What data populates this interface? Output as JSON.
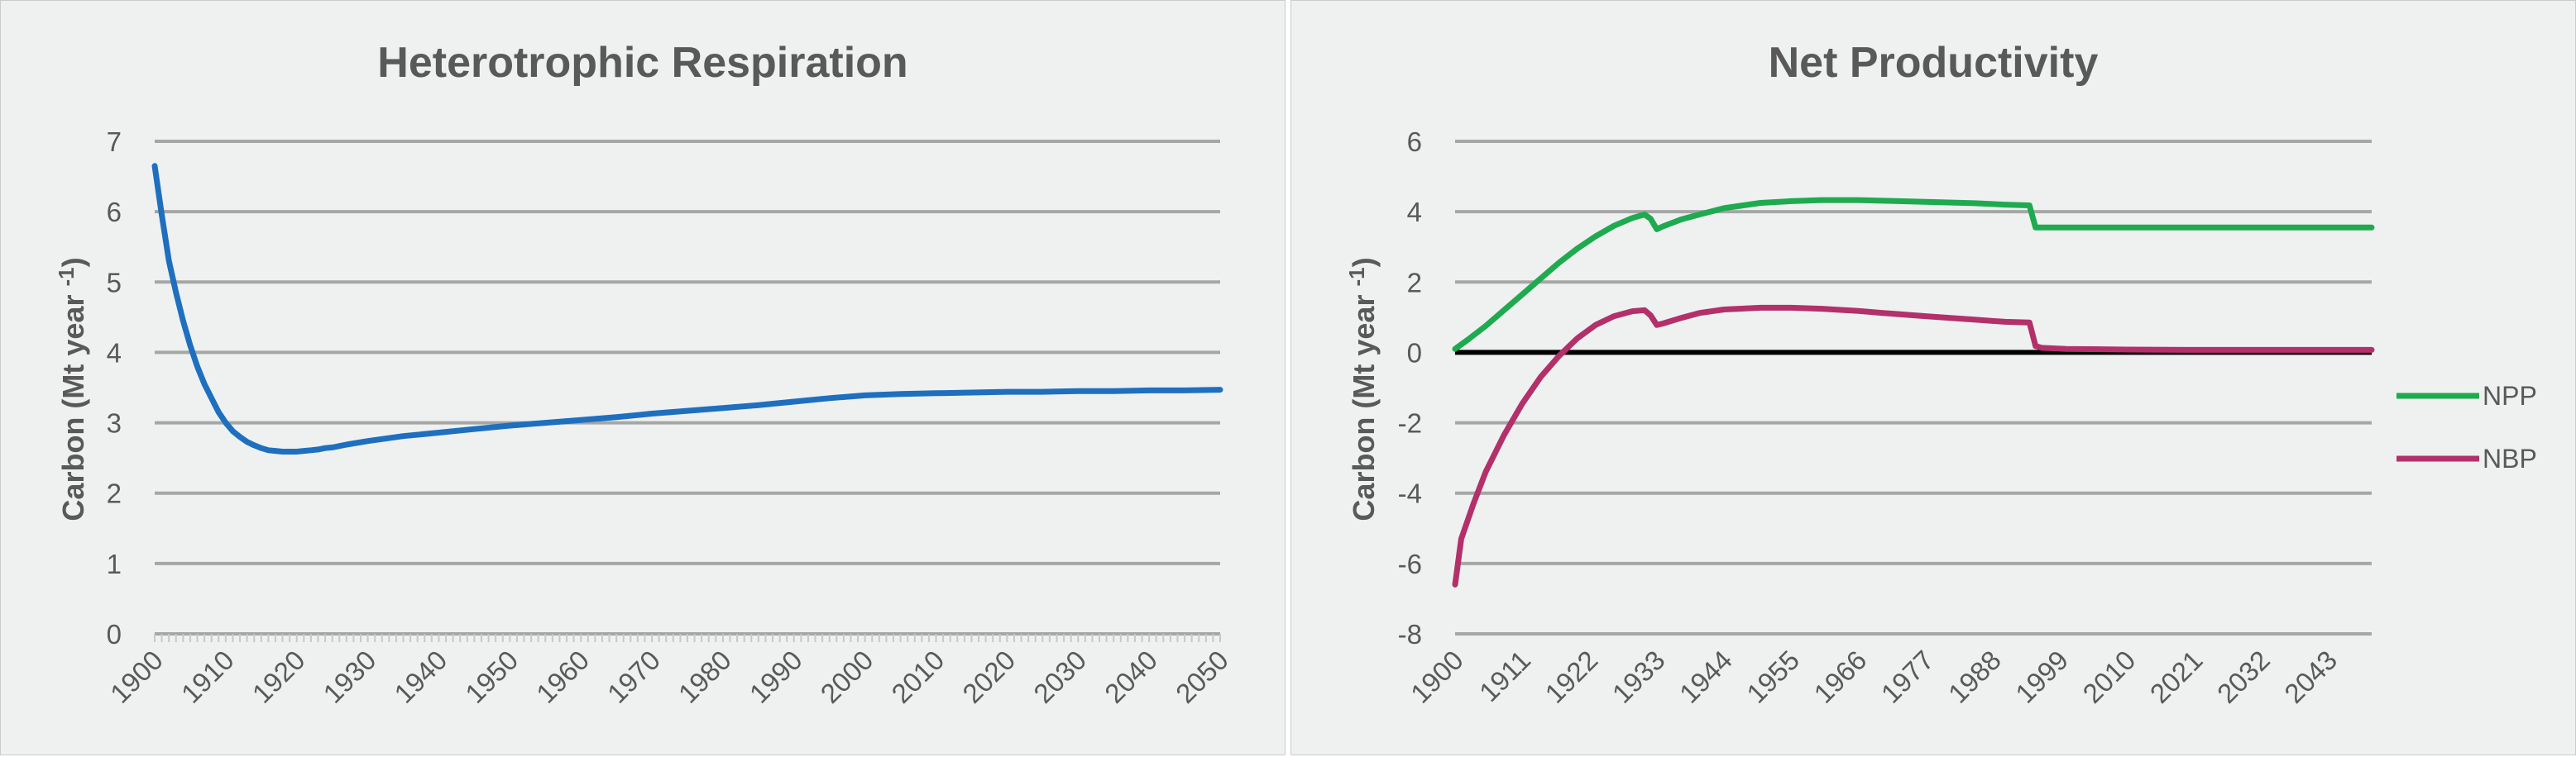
{
  "chart_data": [
    {
      "type": "line",
      "title": "Heterotrophic Respiration",
      "ylabel_main": "Carbon (Mt year ",
      "ylabel_sup": "-1",
      "ylabel_close": ")",
      "xlabel": "",
      "ylim": [
        0,
        7
      ],
      "xlim": [
        1900,
        2050
      ],
      "yticks": [
        "0",
        "1",
        "2",
        "3",
        "4",
        "5",
        "6",
        "7"
      ],
      "xticks": [
        "1900",
        "1910",
        "1920",
        "1930",
        "1940",
        "1950",
        "1960",
        "1970",
        "1980",
        "1990",
        "2000",
        "2010",
        "2020",
        "2030",
        "2040",
        "2050"
      ],
      "grid": true,
      "series": [
        {
          "color": "#1f6fbf",
          "x": [
            1900,
            1901,
            1902,
            1903,
            1904,
            1905,
            1906,
            1907,
            1908,
            1909,
            1910,
            1911,
            1912,
            1913,
            1914,
            1915,
            1916,
            1917,
            1918,
            1919,
            1920,
            1921,
            1922,
            1923,
            1924,
            1925,
            1927,
            1930,
            1935,
            1940,
            1945,
            1950,
            1955,
            1960,
            1965,
            1970,
            1975,
            1980,
            1985,
            1990,
            1995,
            2000,
            2005,
            2010,
            2015,
            2020,
            2025,
            2030,
            2035,
            2040,
            2045,
            2050
          ],
          "values": [
            6.65,
            5.95,
            5.3,
            4.85,
            4.45,
            4.1,
            3.8,
            3.55,
            3.35,
            3.15,
            3.0,
            2.88,
            2.8,
            2.73,
            2.68,
            2.64,
            2.61,
            2.6,
            2.59,
            2.59,
            2.59,
            2.6,
            2.61,
            2.62,
            2.64,
            2.65,
            2.69,
            2.74,
            2.81,
            2.86,
            2.91,
            2.96,
            3.0,
            3.04,
            3.08,
            3.13,
            3.17,
            3.21,
            3.25,
            3.3,
            3.35,
            3.39,
            3.41,
            3.42,
            3.43,
            3.44,
            3.44,
            3.45,
            3.45,
            3.46,
            3.46,
            3.47
          ]
        }
      ]
    },
    {
      "type": "line",
      "title": "Net Productivity",
      "ylabel_main": "Carbon (Mt year ",
      "ylabel_sup": "-1",
      "ylabel_close": ")",
      "xlabel": "",
      "ylim": [
        -8,
        6
      ],
      "xlim": [
        1900,
        2050
      ],
      "yticks": [
        "-8",
        "-6",
        "-4",
        "-2",
        "0",
        "2",
        "4",
        "6"
      ],
      "xticks": [
        "1900",
        "1911",
        "1922",
        "1933",
        "1944",
        "1955",
        "1966",
        "1977",
        "1988",
        "1999",
        "2010",
        "2021",
        "2032",
        "2043"
      ],
      "grid": true,
      "legend_position": "right",
      "series": [
        {
          "name": "NPP",
          "color": "#1faa50",
          "x": [
            1900,
            1902,
            1905,
            1908,
            1911,
            1914,
            1917,
            1920,
            1923,
            1926,
            1929,
            1931,
            1932,
            1933,
            1934,
            1937,
            1940,
            1944,
            1950,
            1955,
            1960,
            1966,
            1970,
            1977,
            1985,
            1990,
            1994,
            1995,
            1996,
            2000,
            2010,
            2020,
            2030,
            2040,
            2050
          ],
          "values": [
            0.1,
            0.35,
            0.75,
            1.2,
            1.65,
            2.1,
            2.55,
            2.95,
            3.3,
            3.6,
            3.82,
            3.92,
            3.8,
            3.5,
            3.58,
            3.78,
            3.92,
            4.1,
            4.25,
            4.3,
            4.33,
            4.33,
            4.31,
            4.28,
            4.24,
            4.2,
            4.18,
            3.55,
            3.55,
            3.55,
            3.55,
            3.55,
            3.55,
            3.55,
            3.55
          ]
        },
        {
          "name": "NBP",
          "color": "#b3306a",
          "x": [
            1900,
            1901,
            1903,
            1905,
            1908,
            1911,
            1914,
            1917,
            1920,
            1923,
            1926,
            1929,
            1931,
            1932,
            1933,
            1934,
            1937,
            1940,
            1944,
            1950,
            1955,
            1960,
            1966,
            1970,
            1977,
            1985,
            1990,
            1994,
            1995,
            1996,
            2000,
            2010,
            2020,
            2030,
            2040,
            2050
          ],
          "values": [
            -6.6,
            -5.3,
            -4.3,
            -3.4,
            -2.35,
            -1.45,
            -0.7,
            -0.1,
            0.4,
            0.78,
            1.03,
            1.17,
            1.2,
            1.05,
            0.78,
            0.82,
            0.98,
            1.12,
            1.22,
            1.27,
            1.27,
            1.24,
            1.18,
            1.12,
            1.03,
            0.93,
            0.87,
            0.85,
            0.18,
            0.13,
            0.1,
            0.08,
            0.07,
            0.07,
            0.07,
            0.07
          ]
        }
      ]
    }
  ]
}
